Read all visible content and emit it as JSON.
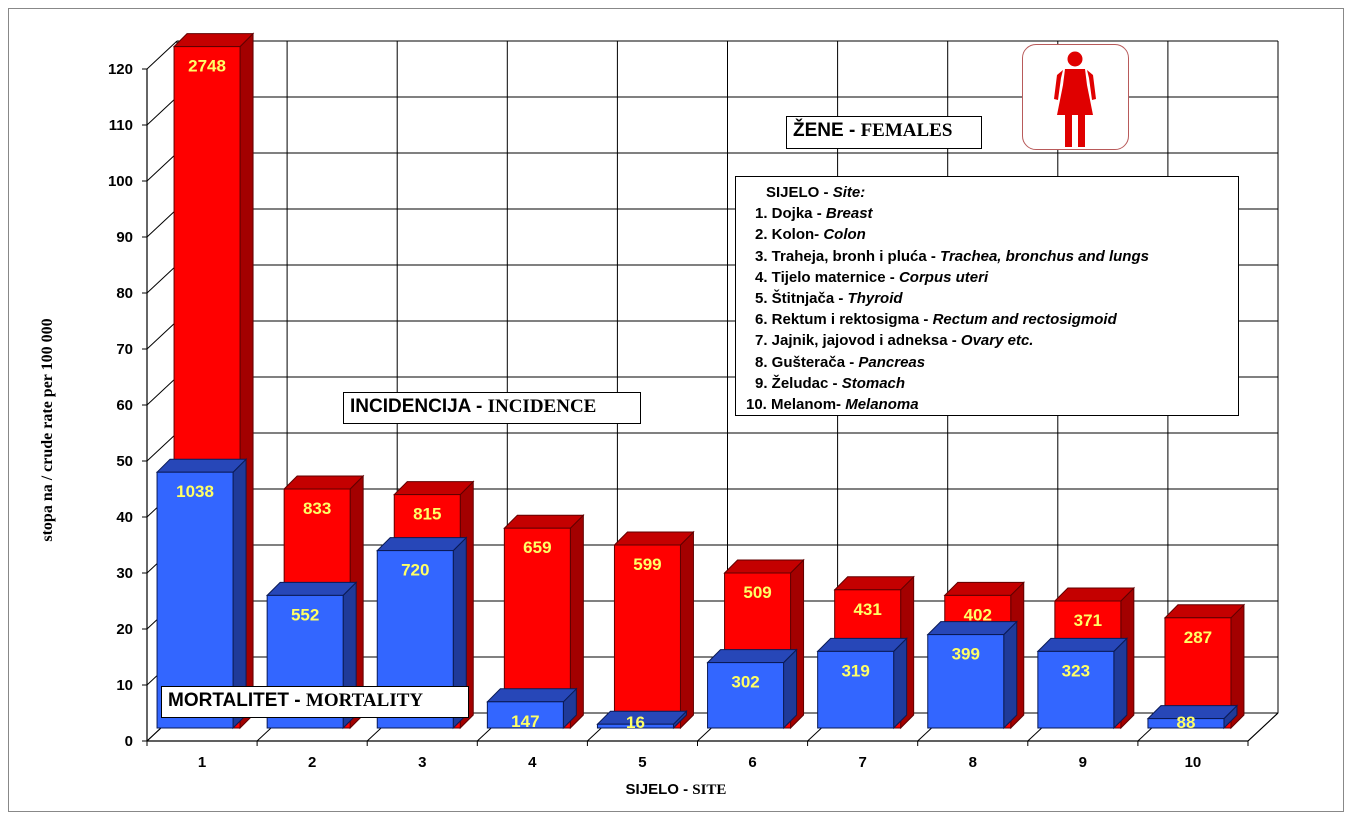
{
  "chart_data": {
    "type": "bar",
    "variant": "3d-overlapping-columns",
    "categories": [
      "1",
      "2",
      "3",
      "4",
      "5",
      "6",
      "7",
      "8",
      "9",
      "10"
    ],
    "series": [
      {
        "name": "INCIDENCIJA - INCIDENCE",
        "color": "#ff0000",
        "values": [
          124,
          45,
          44,
          38,
          35,
          30,
          27,
          26,
          25,
          22
        ],
        "labels": [
          "2748",
          "833",
          "815",
          "659",
          "599",
          "509",
          "431",
          "402",
          "371",
          "287"
        ]
      },
      {
        "name": "MORTALITET - MORTALITY",
        "color": "#3366ff",
        "values": [
          48,
          26,
          34,
          7,
          3,
          14,
          16,
          19,
          16,
          4
        ],
        "labels": [
          "1038",
          "552",
          "720",
          "147",
          "16",
          "302",
          "319",
          "399",
          "323",
          "88"
        ]
      }
    ],
    "ylim": [
      0,
      120
    ],
    "yticks": [
      "0",
      "10",
      "20",
      "30",
      "40",
      "50",
      "60",
      "70",
      "80",
      "90",
      "100",
      "110",
      "120"
    ],
    "ylabel": "stopa na / crude rate per 100 000",
    "xlabel": {
      "part1": "SIJELO - ",
      "part2": "SITE"
    },
    "grid": true
  },
  "annotations": {
    "incidence": {
      "part1": "INCIDENCIJA - ",
      "part2": "INCIDENCE"
    },
    "mortality": {
      "part1": "MORTALITET - ",
      "part2": "MORTALITY"
    },
    "gender": {
      "part1": "ŽENE - ",
      "part2": "FEMALES"
    }
  },
  "legend": {
    "title": {
      "main": "SIJELO - ",
      "italic": "Site:"
    },
    "items": [
      {
        "main": "1. Dojka - ",
        "italic": "Breast"
      },
      {
        "main": "2. Kolon- ",
        "italic": "Colon"
      },
      {
        "main": "3. Traheja, bronh i pluća - ",
        "italic": "Trachea, bronchus and lungs"
      },
      {
        "main": "4. Tijelo maternice - ",
        "italic": "Corpus uteri"
      },
      {
        "main": "5. Štitnjača - ",
        "italic": "Thyroid"
      },
      {
        "main": "6. Rektum i rektosigma - ",
        "italic": "Rectum and rectosigmoid"
      },
      {
        "main": "7. Jajnik, jajovod i adneksa - ",
        "italic": "Ovary etc."
      },
      {
        "main": "8. Gušterača - ",
        "italic": "Pancreas"
      },
      {
        "main": "9. Želudac - ",
        "italic": "Stomach"
      },
      {
        "main": "10. Melanom- ",
        "italic": "Melanoma"
      }
    ]
  },
  "icon": {
    "name": "female-figure-icon",
    "color": "#e00000"
  }
}
